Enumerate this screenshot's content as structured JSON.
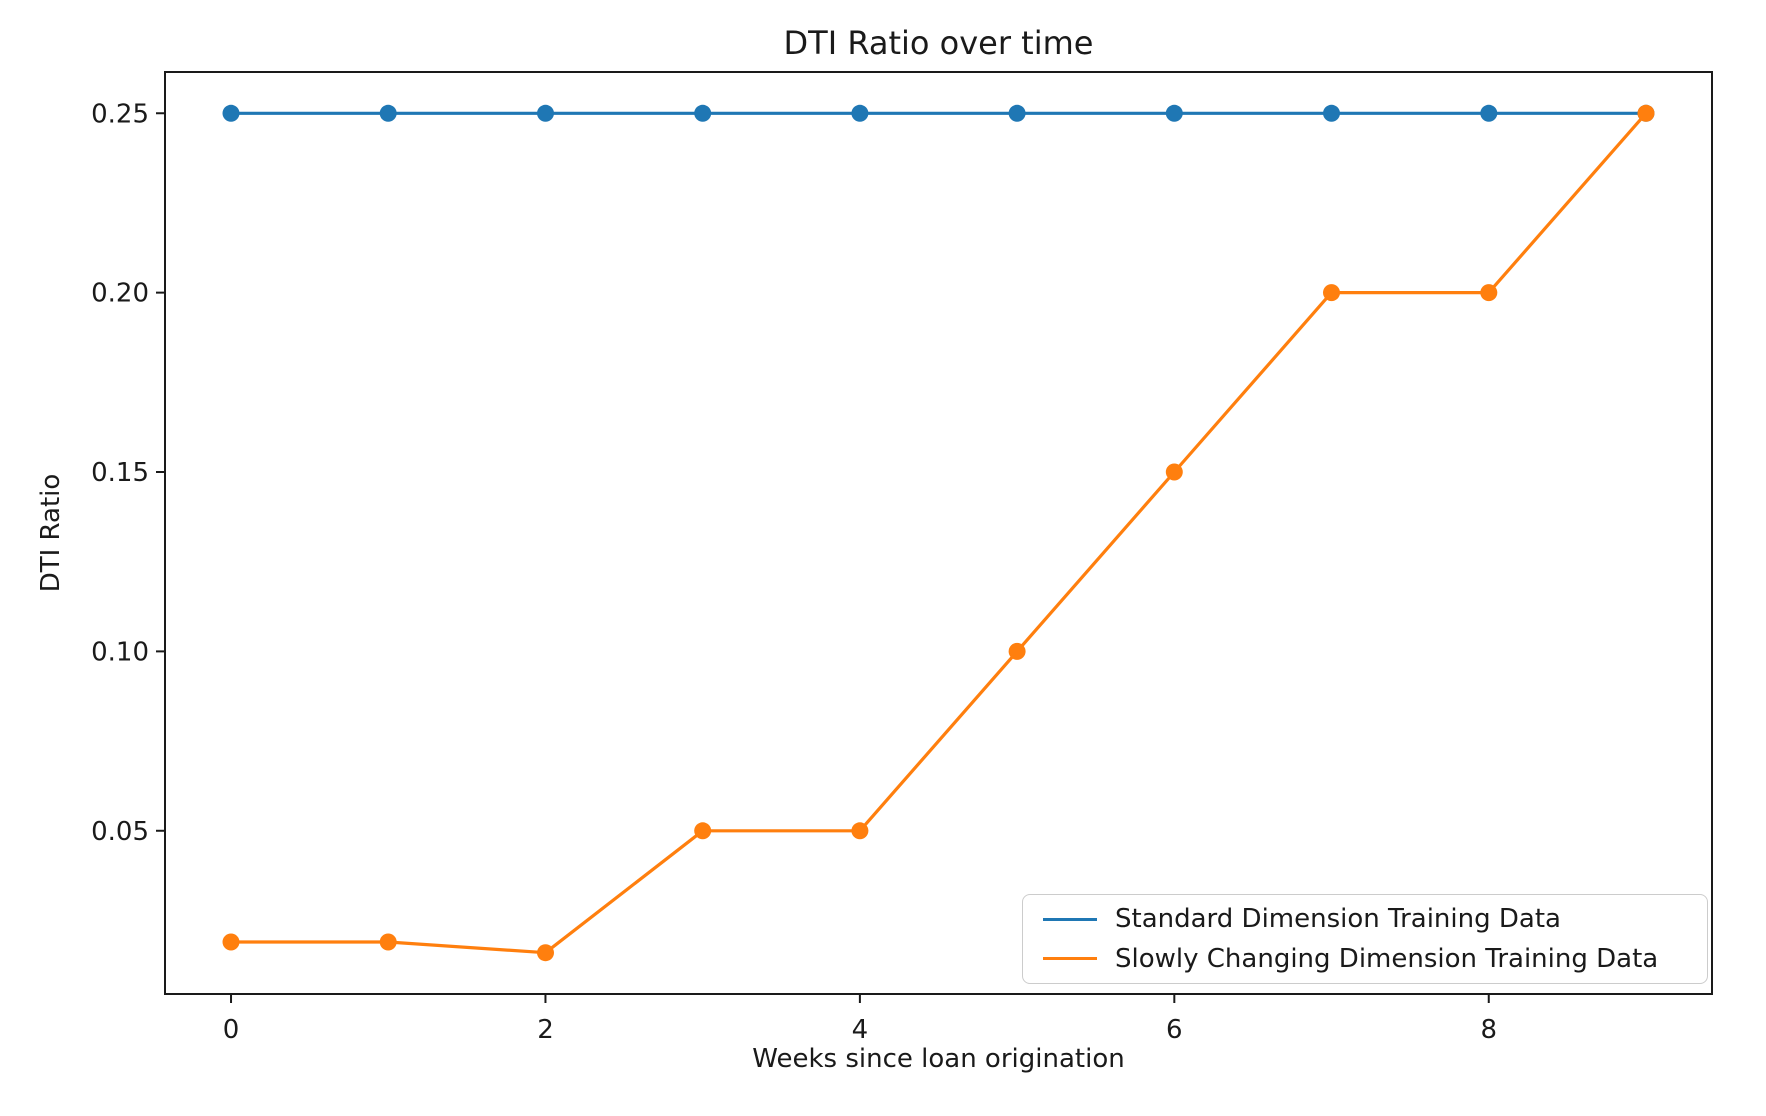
{
  "chart_data": {
    "type": "line",
    "title": "DTI Ratio over time",
    "xlabel": "Weeks since loan origination",
    "ylabel": "DTI Ratio",
    "x": [
      0,
      1,
      2,
      3,
      4,
      5,
      6,
      7,
      8,
      9
    ],
    "series": [
      {
        "name": "Standard Dimension Training Data",
        "color": "#1f77b4",
        "values": [
          0.25,
          0.25,
          0.25,
          0.25,
          0.25,
          0.25,
          0.25,
          0.25,
          0.25,
          0.25
        ]
      },
      {
        "name": "Slowly Changing Dimension Training Data",
        "color": "#ff7f0e",
        "values": [
          0.019,
          0.019,
          0.016,
          0.05,
          0.05,
          0.1,
          0.15,
          0.2,
          0.2,
          0.25
        ]
      }
    ],
    "xticks": [
      0,
      2,
      4,
      6,
      8
    ],
    "yticks": [
      0.05,
      0.1,
      0.15,
      0.2,
      0.25
    ],
    "xlim": [
      -0.42,
      9.42
    ],
    "ylim": [
      0.0045,
      0.2615
    ],
    "grid": false,
    "marker": "o",
    "legend_position": "lower right",
    "background_color": "#ffffff",
    "spine_color": "#1a1a1a"
  }
}
